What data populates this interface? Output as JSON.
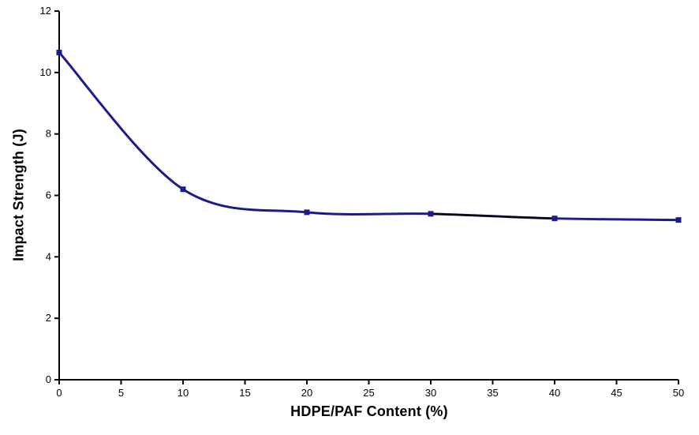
{
  "chart_data": {
    "type": "line",
    "title": "",
    "xlabel": "HDPE/PAF Content (%)",
    "ylabel": "Impact Strength (J)",
    "x": [
      0,
      10,
      20,
      30,
      40,
      50
    ],
    "y": [
      10.65,
      6.2,
      5.45,
      5.4,
      5.25,
      5.2
    ],
    "xlim": [
      0,
      50
    ],
    "ylim": [
      0,
      12
    ],
    "xticks": [
      0,
      5,
      10,
      15,
      20,
      25,
      30,
      35,
      40,
      45,
      50
    ],
    "yticks": [
      0,
      2,
      4,
      6,
      8,
      10,
      12
    ],
    "grid": false,
    "legend": "none",
    "smooth": true,
    "line_color": "#1b1b8e",
    "line_width": 3,
    "marker": "square",
    "marker_color": "#1b1b8e",
    "marker_size": 7,
    "trend_overlay": {
      "x": [
        30,
        40
      ],
      "y": [
        5.4,
        5.25
      ],
      "color": "#000000",
      "width": 2
    },
    "axis_color": "#000000"
  }
}
